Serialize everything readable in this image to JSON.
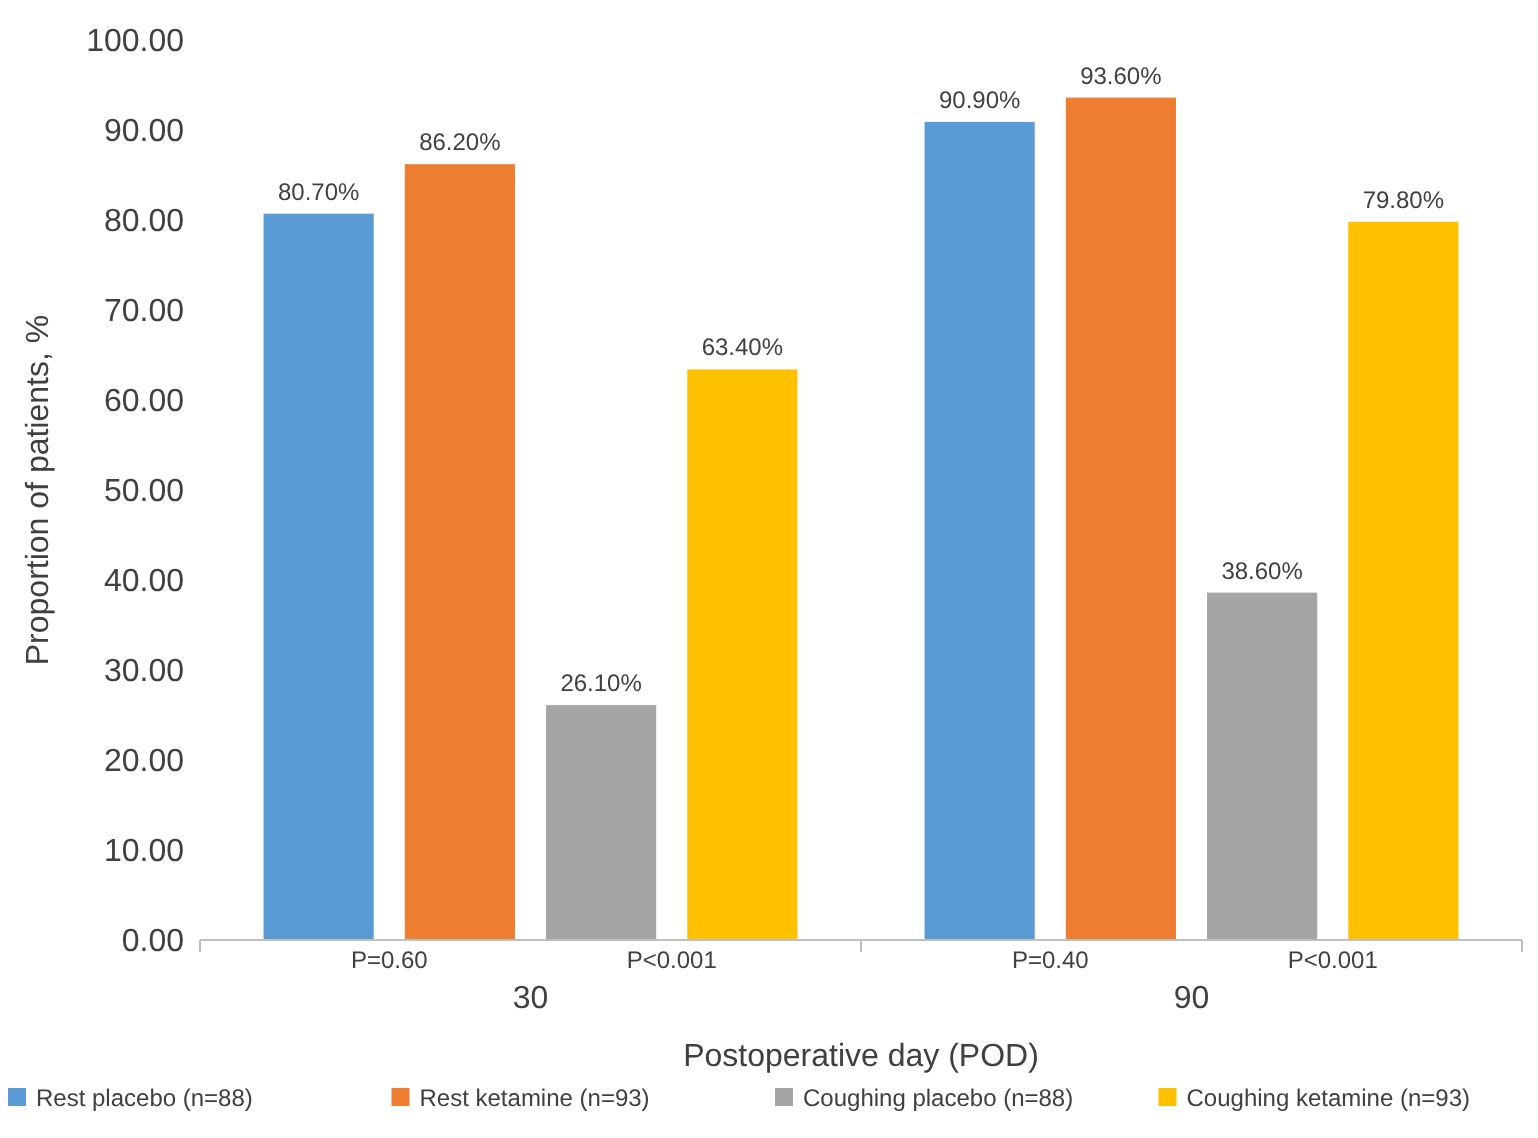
{
  "chart_data": {
    "type": "bar",
    "xlabel": "Postoperative day (POD)",
    "ylabel": "Proportion of patients, %",
    "categories": [
      "30",
      "90"
    ],
    "series": [
      {
        "name": "Rest placebo (n=88)",
        "color": "#5b9bd5",
        "values": [
          80.7,
          90.9
        ],
        "value_labels": [
          "80.70%",
          "90.90%"
        ]
      },
      {
        "name": "Rest ketamine (n=93)",
        "color": "#ed7d31",
        "values": [
          86.2,
          93.6
        ],
        "value_labels": [
          "86.20%",
          "93.60%"
        ]
      },
      {
        "name": "Coughing placebo (n=88)",
        "color": "#a5a5a5",
        "values": [
          26.1,
          38.6
        ],
        "value_labels": [
          "26.10%",
          "38.60%"
        ]
      },
      {
        "name": "Coughing ketamine (n=93)",
        "color": "#ffc000",
        "values": [
          63.4,
          79.8
        ],
        "value_labels": [
          "63.40%",
          "79.80%"
        ]
      }
    ],
    "ylim": [
      0,
      100
    ],
    "yticks": [
      {
        "value": 0,
        "label": "0.00"
      },
      {
        "value": 10,
        "label": "10.00"
      },
      {
        "value": 20,
        "label": "20.00"
      },
      {
        "value": 30,
        "label": "30.00"
      },
      {
        "value": 40,
        "label": "40.00"
      },
      {
        "value": 50,
        "label": "50.00"
      },
      {
        "value": 60,
        "label": "60.00"
      },
      {
        "value": 70,
        "label": "70.00"
      },
      {
        "value": 80,
        "label": "80.00"
      },
      {
        "value": 90,
        "label": "90.00"
      },
      {
        "value": 100,
        "label": "100.00"
      }
    ],
    "annotations": [
      "P=0.60",
      "P<0.001",
      "P=0.40",
      "P<0.001"
    ],
    "legend": "bottom"
  }
}
